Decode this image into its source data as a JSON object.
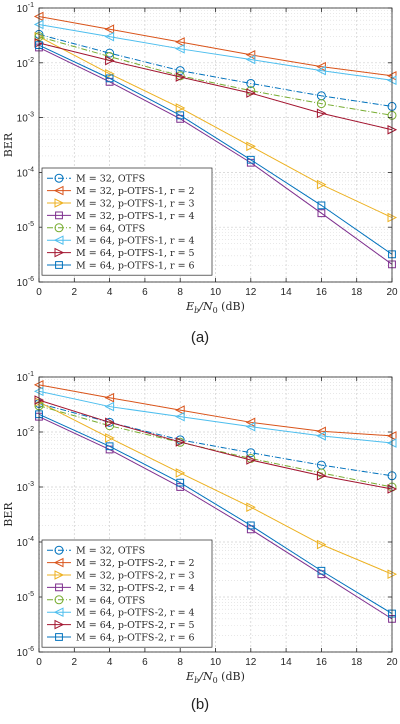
{
  "chart_data": [
    {
      "type": "line",
      "caption": "(a)",
      "xlabel_main": "E",
      "xlabel_sub": "b",
      "xlabel_mid": "/N",
      "xlabel_sub2": "0",
      "xlabel_unit": "(dB)",
      "ylabel": "BER",
      "yscale": "log",
      "xlim": [
        0,
        20
      ],
      "ylim": [
        1e-06,
        0.1
      ],
      "grid": true,
      "legend_position": "bottom-left",
      "x": [
        0,
        4,
        8,
        12,
        16,
        20
      ],
      "x_ticks": [
        "0",
        "2",
        "4",
        "6",
        "8",
        "10",
        "12",
        "14",
        "16",
        "18",
        "20"
      ],
      "y_ticks": [
        {
          "base": "10",
          "exp": "-6"
        },
        {
          "base": "10",
          "exp": "-5"
        },
        {
          "base": "10",
          "exp": "-4"
        },
        {
          "base": "10",
          "exp": "-3"
        },
        {
          "base": "10",
          "exp": "-2"
        },
        {
          "base": "10",
          "exp": "-1"
        }
      ],
      "series": [
        {
          "name": "M = 32, OTFS",
          "color": "#0072bd",
          "marker": "circle",
          "dash": "dashdot",
          "values": [
            0.033,
            0.015,
            0.0072,
            0.0042,
            0.0025,
            0.0016
          ]
        },
        {
          "name": "M = 32, p-OTFS-1, r = 2",
          "color": "#d95319",
          "marker": "triangle-left",
          "dash": "solid",
          "values": [
            0.07,
            0.041,
            0.024,
            0.014,
            0.0085,
            0.0058
          ]
        },
        {
          "name": "M = 32, p-OTFS-1, r = 3",
          "color": "#edb120",
          "marker": "triangle-right",
          "dash": "solid",
          "values": [
            0.03,
            0.0063,
            0.0015,
            0.0003,
            6e-05,
            1.5e-05
          ]
        },
        {
          "name": "M = 32, p-OTFS-1, r = 4",
          "color": "#7e2f8e",
          "marker": "square",
          "dash": "solid",
          "values": [
            0.019,
            0.0045,
            0.00095,
            0.00015,
            1.8e-05,
            2.1e-06
          ]
        },
        {
          "name": "M = 64, OTFS",
          "color": "#77ac30",
          "marker": "circle",
          "dash": "dashdot",
          "values": [
            0.03,
            0.013,
            0.0058,
            0.0031,
            0.0018,
            0.0011
          ]
        },
        {
          "name": "M = 64, p-OTFS-1, r = 4",
          "color": "#4dbeee",
          "marker": "triangle-left",
          "dash": "solid",
          "values": [
            0.05,
            0.03,
            0.018,
            0.0115,
            0.0072,
            0.0048
          ]
        },
        {
          "name": "M = 64, p-OTFS-1, r = 5",
          "color": "#a2142f",
          "marker": "triangle-right",
          "dash": "solid",
          "values": [
            0.023,
            0.011,
            0.0055,
            0.0028,
            0.0012,
            0.0006
          ]
        },
        {
          "name": "M = 64, p-OTFS-1, r = 6",
          "color": "#0072bd",
          "marker": "square",
          "dash": "solid",
          "values": [
            0.021,
            0.0052,
            0.0011,
            0.00017,
            2.5e-05,
            3.2e-06
          ]
        }
      ]
    },
    {
      "type": "line",
      "caption": "(b)",
      "xlabel_main": "E",
      "xlabel_sub": "b",
      "xlabel_mid": "/N",
      "xlabel_sub2": "0",
      "xlabel_unit": "(dB)",
      "ylabel": "BER",
      "yscale": "log",
      "xlim": [
        0,
        20
      ],
      "ylim": [
        1e-06,
        0.1
      ],
      "grid": true,
      "legend_position": "bottom-left",
      "x": [
        0,
        4,
        8,
        12,
        16,
        20
      ],
      "x_ticks": [
        "0",
        "2",
        "4",
        "6",
        "8",
        "10",
        "12",
        "14",
        "16",
        "18",
        "20"
      ],
      "y_ticks": [
        {
          "base": "10",
          "exp": "-6"
        },
        {
          "base": "10",
          "exp": "-5"
        },
        {
          "base": "10",
          "exp": "-4"
        },
        {
          "base": "10",
          "exp": "-3"
        },
        {
          "base": "10",
          "exp": "-2"
        },
        {
          "base": "10",
          "exp": "-1"
        }
      ],
      "series": [
        {
          "name": "M = 32, OTFS",
          "color": "#0072bd",
          "marker": "circle",
          "dash": "dashdot",
          "values": [
            0.033,
            0.015,
            0.0072,
            0.0042,
            0.0025,
            0.0016
          ]
        },
        {
          "name": "M = 32, p-OTFS-2, r = 2",
          "color": "#d95319",
          "marker": "triangle-left",
          "dash": "solid",
          "values": [
            0.072,
            0.042,
            0.025,
            0.015,
            0.0103,
            0.0085
          ]
        },
        {
          "name": "M = 32, p-OTFS-2, r = 3",
          "color": "#edb120",
          "marker": "triangle-right",
          "dash": "solid",
          "values": [
            0.035,
            0.0078,
            0.0018,
            0.00043,
            9e-05,
            2.6e-05
          ]
        },
        {
          "name": "M = 32, p-OTFS-2, r = 4",
          "color": "#7e2f8e",
          "marker": "square",
          "dash": "solid",
          "values": [
            0.019,
            0.0048,
            0.001,
            0.00017,
            2.6e-05,
            4e-06
          ]
        },
        {
          "name": "M = 64, OTFS",
          "color": "#77ac30",
          "marker": "circle",
          "dash": "dashdot",
          "values": [
            0.03,
            0.013,
            0.0065,
            0.0033,
            0.0018,
            0.001
          ]
        },
        {
          "name": "M = 64, p-OTFS-2, r = 4",
          "color": "#4dbeee",
          "marker": "triangle-left",
          "dash": "solid",
          "values": [
            0.055,
            0.029,
            0.019,
            0.0125,
            0.0085,
            0.0063
          ]
        },
        {
          "name": "M = 64, p-OTFS-2, r = 5",
          "color": "#a2142f",
          "marker": "triangle-right",
          "dash": "solid",
          "values": [
            0.038,
            0.015,
            0.0066,
            0.0031,
            0.0016,
            0.00092
          ]
        },
        {
          "name": "M = 64, p-OTFS-2, r = 6",
          "color": "#0072bd",
          "marker": "square",
          "dash": "solid",
          "values": [
            0.021,
            0.0055,
            0.0012,
            0.0002,
            3e-05,
            5e-06
          ]
        }
      ]
    }
  ]
}
